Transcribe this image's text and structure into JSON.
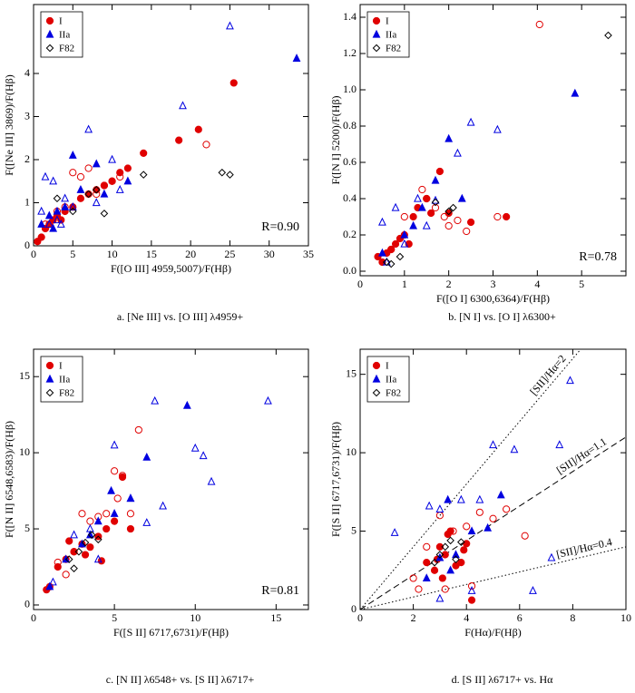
{
  "chart_data": [
    {
      "type": "scatter",
      "caption": "a. [Ne III] vs. [O III] λ4959+",
      "xlabel": "F([O III] 4959,5007)/F(Hβ)",
      "ylabel": "F([Ne III] 3869)/F(Hβ)",
      "annotation": "R=0.90",
      "xlim": [
        0,
        35
      ],
      "ylim": [
        0,
        5.6
      ],
      "xticks": [
        0,
        5,
        10,
        15,
        20,
        25,
        30,
        35
      ],
      "yticks": [
        0,
        1,
        2,
        3,
        4
      ],
      "series": [
        {
          "name": "I",
          "color": "#e00000",
          "marker": "circle",
          "x": [
            0.5,
            1,
            1.5,
            2,
            2.5,
            3,
            3.5,
            4,
            5,
            6,
            7,
            8,
            9,
            10,
            11,
            12,
            14,
            18.5,
            21,
            25.5,
            3,
            5,
            6,
            7,
            8,
            9,
            10,
            11,
            22,
            1.5,
            4
          ],
          "values": [
            0.1,
            0.2,
            0.4,
            0.5,
            0.6,
            0.7,
            0.6,
            0.8,
            0.9,
            1.1,
            1.2,
            1.3,
            1.4,
            1.5,
            1.7,
            1.8,
            2.15,
            2.45,
            2.7,
            3.78,
            0.8,
            1.7,
            1.6,
            1.8,
            1.2,
            1.4,
            1.5,
            1.6,
            2.35,
            0.5,
            0.9
          ],
          "filled": [
            true,
            true,
            true,
            true,
            true,
            true,
            true,
            true,
            true,
            true,
            true,
            true,
            true,
            true,
            true,
            true,
            true,
            true,
            true,
            true,
            false,
            false,
            false,
            false,
            false,
            false,
            false,
            false,
            false,
            false,
            false
          ]
        },
        {
          "name": "IIa",
          "color": "#0000e0",
          "marker": "triangle",
          "x": [
            2,
            3,
            4,
            5,
            6,
            8,
            9,
            12,
            33.5,
            1,
            2.5,
            1,
            1.5,
            2,
            3,
            4,
            5,
            7,
            8,
            10,
            11,
            19,
            25,
            3.5,
            2.5
          ],
          "values": [
            0.7,
            0.8,
            0.9,
            2.1,
            1.3,
            1.9,
            1.2,
            1.5,
            4.35,
            0.5,
            0.4,
            0.8,
            1.6,
            0.5,
            0.6,
            1.1,
            0.9,
            2.7,
            1.0,
            2.0,
            1.3,
            3.25,
            5.1,
            0.5,
            1.5
          ],
          "filled": [
            true,
            true,
            true,
            true,
            true,
            true,
            true,
            true,
            true,
            true,
            true,
            false,
            false,
            false,
            false,
            false,
            false,
            false,
            false,
            false,
            false,
            false,
            false,
            false,
            false
          ]
        },
        {
          "name": "F82",
          "color": "#000000",
          "marker": "diamond",
          "x": [
            3,
            5,
            8,
            9,
            14,
            24,
            25,
            7
          ],
          "values": [
            1.1,
            0.8,
            1.3,
            0.75,
            1.65,
            1.7,
            1.65,
            1.2
          ],
          "filled": [
            false,
            false,
            false,
            false,
            false,
            false,
            false,
            false
          ]
        }
      ]
    },
    {
      "type": "scatter",
      "caption": "b. [N I] vs. [O I] λ6300+",
      "xlabel": "F([O I] 6300,6364)/F(Hβ)",
      "ylabel": "F([N I] 5200)/F(Hβ)",
      "annotation": "R=0.78",
      "xlim": [
        0,
        6
      ],
      "ylim": [
        -0.025,
        1.47
      ],
      "xticks": [
        0,
        1,
        2,
        3,
        4,
        5
      ],
      "yticks": [
        {
          "value": 0,
          "label": "0.0"
        },
        0.2,
        0.4,
        0.6,
        0.8,
        {
          "value": 1,
          "label": "1.0"
        },
        1.2,
        1.4
      ],
      "series": [
        {
          "name": "I",
          "color": "#e00000",
          "marker": "circle",
          "x": [
            0.4,
            0.5,
            0.6,
            0.7,
            0.8,
            0.9,
            1.0,
            1.1,
            1.2,
            1.3,
            1.5,
            1.6,
            1.8,
            2.0,
            2.5,
            3.3,
            0.7,
            1.0,
            1.4,
            1.5,
            1.7,
            1.9,
            2.0,
            2.2,
            2.4,
            3.1,
            4.05
          ],
          "values": [
            0.08,
            0.05,
            0.1,
            0.12,
            0.15,
            0.18,
            0.2,
            0.15,
            0.3,
            0.35,
            0.4,
            0.32,
            0.55,
            0.32,
            0.27,
            0.3,
            0.12,
            0.3,
            0.45,
            0.4,
            0.35,
            0.3,
            0.25,
            0.28,
            0.22,
            0.3,
            1.36
          ],
          "filled": [
            true,
            true,
            true,
            true,
            true,
            true,
            true,
            true,
            true,
            true,
            true,
            true,
            true,
            true,
            true,
            true,
            false,
            false,
            false,
            false,
            false,
            false,
            false,
            false,
            false,
            false,
            false
          ]
        },
        {
          "name": "IIa",
          "color": "#0000e0",
          "marker": "triangle",
          "x": [
            0.5,
            1.0,
            1.4,
            1.7,
            2.0,
            2.3,
            4.85,
            1.2,
            0.5,
            0.8,
            1.3,
            1.7,
            2.5,
            3.1,
            1.0,
            1.5,
            2.2,
            0.6
          ],
          "values": [
            0.1,
            0.2,
            0.35,
            0.5,
            0.73,
            0.4,
            0.98,
            0.25,
            0.27,
            0.35,
            0.4,
            0.39,
            0.82,
            0.78,
            0.15,
            0.25,
            0.65,
            0.05
          ],
          "filled": [
            true,
            true,
            true,
            true,
            true,
            true,
            true,
            true,
            false,
            false,
            false,
            false,
            false,
            false,
            false,
            false,
            false,
            false
          ]
        },
        {
          "name": "F82",
          "color": "#000000",
          "marker": "diamond",
          "x": [
            0.6,
            0.7,
            0.9,
            1.7,
            2.0,
            2.1,
            5.6
          ],
          "values": [
            0.05,
            0.04,
            0.08,
            0.38,
            0.33,
            0.35,
            1.3
          ],
          "filled": [
            false,
            false,
            false,
            false,
            false,
            false,
            false
          ]
        }
      ]
    },
    {
      "type": "scatter",
      "caption": "c. [N II] λ6548+ vs. [S II] λ6717+",
      "xlabel": "F([S II] 6717,6731)/F(Hβ)",
      "ylabel": "F([N II] 6548,6583)/F(Hβ)",
      "annotation": "R=0.81",
      "xlim": [
        0,
        17
      ],
      "ylim": [
        -0.3,
        16.8
      ],
      "xticks": [
        0,
        5,
        10,
        15
      ],
      "yticks": [
        0,
        5,
        10,
        15
      ],
      "series": [
        {
          "name": "I",
          "color": "#e00000",
          "marker": "circle",
          "x": [
            0.8,
            1,
            1.5,
            2,
            2.5,
            3,
            3.5,
            4,
            4.5,
            5,
            5.5,
            6,
            2.2,
            3.2,
            4.2,
            1.5,
            2.5,
            3.5,
            4.5,
            5,
            5.5,
            6,
            6.5,
            3,
            4,
            2,
            5.2
          ],
          "values": [
            1.0,
            1.2,
            2.5,
            3.0,
            3.5,
            4.0,
            3.8,
            4.5,
            5.0,
            5.5,
            8.4,
            5.0,
            4.2,
            3.3,
            2.9,
            2.8,
            3.5,
            5.5,
            6.0,
            8.8,
            8.5,
            6.0,
            11.5,
            6.0,
            5.8,
            2.0,
            7.0
          ],
          "filled": [
            true,
            true,
            true,
            true,
            true,
            true,
            true,
            true,
            true,
            true,
            true,
            true,
            true,
            true,
            true,
            false,
            false,
            false,
            false,
            false,
            false,
            false,
            false,
            false,
            false,
            false,
            false
          ]
        },
        {
          "name": "IIa",
          "color": "#0000e0",
          "marker": "triangle",
          "x": [
            1,
            2,
            3,
            4,
            5,
            6,
            7,
            9.5,
            3.5,
            4.8,
            1.2,
            2.5,
            3.5,
            5,
            6,
            7.5,
            10,
            10.5,
            11,
            14.5,
            7,
            4,
            8
          ],
          "values": [
            1.2,
            3.0,
            4.0,
            5.5,
            6.0,
            7.0,
            9.7,
            13.1,
            4.6,
            7.5,
            1.5,
            4.6,
            5.0,
            10.5,
            7.0,
            13.4,
            10.3,
            9.8,
            8.1,
            13.4,
            5.4,
            3.0,
            6.5
          ],
          "filled": [
            true,
            true,
            true,
            true,
            true,
            true,
            true,
            true,
            true,
            true,
            false,
            false,
            false,
            false,
            false,
            false,
            false,
            false,
            false,
            false,
            false,
            false,
            false
          ]
        },
        {
          "name": "F82",
          "color": "#000000",
          "marker": "diamond",
          "x": [
            2.2,
            2.8,
            3.2,
            3.6,
            4.0,
            2.5
          ],
          "values": [
            3.0,
            3.5,
            4.1,
            4.6,
            4.3,
            2.4
          ],
          "filled": [
            false,
            false,
            false,
            false,
            false,
            false
          ]
        }
      ]
    },
    {
      "type": "scatter",
      "caption": "d. [S II] λ6717+ vs. Hα",
      "xlabel": "F(Hα)/F(Hβ)",
      "ylabel": "F([S II] 6717,6731)/F(Hβ)",
      "xlim": [
        0,
        10
      ],
      "ylim": [
        0,
        16.6
      ],
      "xticks": [
        0,
        2,
        4,
        6,
        8,
        10
      ],
      "yticks": [
        0,
        5,
        10,
        15
      ],
      "lines": [
        {
          "slope": 2,
          "label": "[SII]/Hα=2",
          "style": "dotted"
        },
        {
          "slope": 1.1,
          "label": "[SII]/Hα=1.1",
          "style": "dashed"
        },
        {
          "slope": 0.4,
          "label": "[SII]/Hα=0.4",
          "style": "dotted"
        }
      ],
      "series": [
        {
          "name": "I",
          "color": "#e00000",
          "marker": "circle",
          "x": [
            2.5,
            2.8,
            3.0,
            3.2,
            3.4,
            3.6,
            3.8,
            4.0,
            4.2,
            3.1,
            2.9,
            3.3,
            3.9,
            2.0,
            2.5,
            3.0,
            3.5,
            4.0,
            4.5,
            5.0,
            5.5,
            6.2,
            3.2,
            4.2,
            2.2
          ],
          "values": [
            3.0,
            2.5,
            4.0,
            3.5,
            5.0,
            2.8,
            3.0,
            4.2,
            0.6,
            2.0,
            3.2,
            4.8,
            3.8,
            2.0,
            4.0,
            6.0,
            5.0,
            5.3,
            6.2,
            5.8,
            6.4,
            4.7,
            1.3,
            1.5,
            1.3
          ],
          "filled": [
            true,
            true,
            true,
            true,
            true,
            true,
            true,
            true,
            true,
            true,
            true,
            true,
            true,
            false,
            false,
            false,
            false,
            false,
            false,
            false,
            false,
            false,
            false,
            false,
            false
          ]
        },
        {
          "name": "IIa",
          "color": "#0000e0",
          "marker": "triangle",
          "x": [
            2.5,
            3.0,
            3.3,
            3.6,
            4.2,
            4.8,
            5.3,
            3.4,
            1.3,
            2.6,
            3.0,
            3.8,
            4.5,
            5.0,
            5.8,
            7.5,
            7.9,
            7.2,
            6.5,
            4.2,
            3.0
          ],
          "values": [
            2.0,
            3.3,
            7.0,
            3.5,
            5.0,
            5.2,
            7.3,
            2.5,
            4.9,
            6.6,
            6.4,
            7.0,
            7.0,
            10.5,
            10.2,
            10.5,
            14.6,
            3.3,
            1.2,
            1.2,
            0.7
          ],
          "filled": [
            true,
            true,
            true,
            true,
            true,
            true,
            true,
            true,
            false,
            false,
            false,
            false,
            false,
            false,
            false,
            false,
            false,
            false,
            false,
            false,
            false
          ]
        },
        {
          "name": "F82",
          "color": "#000000",
          "marker": "diamond",
          "x": [
            2.8,
            3.0,
            3.2,
            3.4,
            3.6,
            3.8
          ],
          "values": [
            3.0,
            3.5,
            4.0,
            4.4,
            3.2,
            4.3
          ],
          "filled": [
            false,
            false,
            false,
            false,
            false,
            false
          ]
        }
      ]
    }
  ]
}
